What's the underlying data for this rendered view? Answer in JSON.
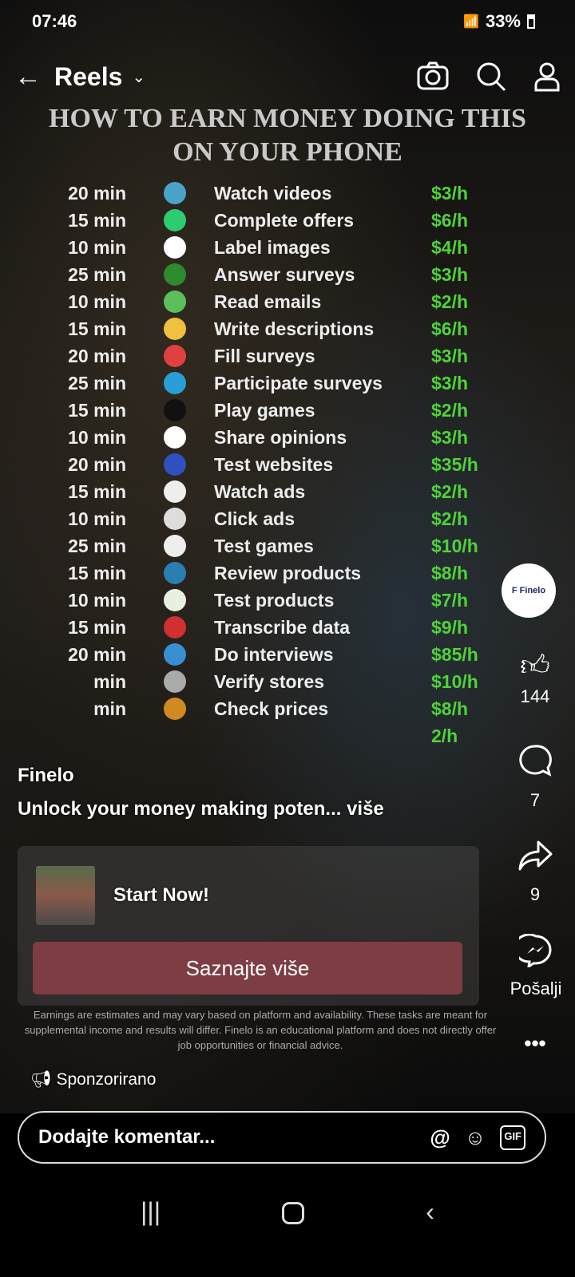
{
  "status": {
    "time": "07:46",
    "battery": "33%"
  },
  "video_headline": [
    "HOW TO EARN MONEY DOING THIS",
    "ON YOUR PHONE"
  ],
  "topbar": {
    "title": "Reels",
    "icons": [
      "back-arrow-icon",
      "chevron-down-icon",
      "camera-icon",
      "search-icon",
      "profile-icon"
    ]
  },
  "rows": [
    {
      "time": "20 min",
      "task": "Watch videos",
      "rate": "$3/h",
      "color": "#4aa3c8"
    },
    {
      "time": "15 min",
      "task": "Complete offers",
      "rate": "$6/h",
      "color": "#2ecc71"
    },
    {
      "time": "10 min",
      "task": "Label images",
      "rate": "$4/h",
      "color": "#ffffff"
    },
    {
      "time": "25 min",
      "task": "Answer surveys",
      "rate": "$3/h",
      "color": "#2d8a2d"
    },
    {
      "time": "10 min",
      "task": "Read emails",
      "rate": "$2/h",
      "color": "#5bbf5b"
    },
    {
      "time": "15 min",
      "task": "Write descriptions",
      "rate": "$6/h",
      "color": "#f0c040"
    },
    {
      "time": "20 min",
      "task": "Fill surveys",
      "rate": "$3/h",
      "color": "#e04040"
    },
    {
      "time": "25 min",
      "task": "Participate surveys",
      "rate": "$3/h",
      "color": "#2a9fd6"
    },
    {
      "time": "15 min",
      "task": "Play games",
      "rate": "$2/h",
      "color": "#111111"
    },
    {
      "time": "10 min",
      "task": "Share opinions",
      "rate": "$3/h",
      "color": "#ffffff"
    },
    {
      "time": "20 min",
      "task": "Test websites",
      "rate": "$35/h",
      "color": "#3050c0"
    },
    {
      "time": "15 min",
      "task": "Watch ads",
      "rate": "$2/h",
      "color": "#eeeeee"
    },
    {
      "time": "10 min",
      "task": "Click ads",
      "rate": "$2/h",
      "color": "#dddddd"
    },
    {
      "time": "25 min",
      "task": "Test games",
      "rate": "$10/h",
      "color": "#eeeeee"
    },
    {
      "time": "15 min",
      "task": "Review products",
      "rate": "$8/h",
      "color": "#2a7fb0"
    },
    {
      "time": "10 min",
      "task": "Test products",
      "rate": "$7/h",
      "color": "#e8f0e0"
    },
    {
      "time": "15 min",
      "task": "Transcribe data",
      "rate": "$9/h",
      "color": "#d03030"
    },
    {
      "time": "20 min",
      "task": "Do interviews",
      "rate": "$85/h",
      "color": "#3a8fd0"
    },
    {
      "time": "min",
      "task": "Verify stores",
      "rate": "$10/h",
      "color": "#aaaaaa"
    },
    {
      "time": "min",
      "task": "Check prices",
      "rate": "$8/h",
      "color": "#d08a20"
    },
    {
      "time": "",
      "task": "",
      "rate": "2/h",
      "color": ""
    }
  ],
  "rail": {
    "avatar_label": "F Finelo",
    "likes": "144",
    "comments": "7",
    "shares": "9",
    "send_label": "Pošalji"
  },
  "post": {
    "author": "Finelo",
    "caption": "Unlock your money making poten... više",
    "ad_title": "Start Now!",
    "cta": "Saznajte više",
    "disclaimer": "Earnings are estimates and may vary based on platform and availability. These tasks are meant for supplemental income and results will differ. Finelo is an educational platform and does not directly offer job opportunities or financial advice.",
    "sponsored": "Sponzorirano"
  },
  "comment_bar": {
    "placeholder": "Dodajte komentar...",
    "icons": [
      "mention-icon",
      "emoji-icon",
      "gif-icon"
    ]
  },
  "nav": {
    "icons": [
      "recent-apps-icon",
      "home-icon",
      "back-icon"
    ]
  }
}
